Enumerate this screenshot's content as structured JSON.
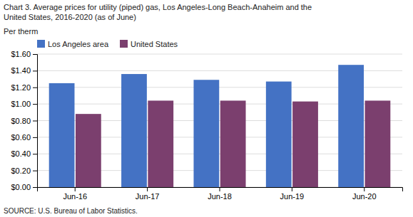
{
  "chart_data": {
    "type": "bar",
    "title": [
      "Chart 3. Average prices for utility (piped) gas, Los Angeles-Long Beach-Anaheim and the",
      "United States, 2016-2020  (as of June)"
    ],
    "ylabel": "Per therm",
    "source": "SOURCE: U.S. Bureau of Labor Statistics.",
    "categories": [
      "Jun-16",
      "Jun-17",
      "Jun-18",
      "Jun-19",
      "Jun-20"
    ],
    "series": [
      {
        "name": "Los Angeles area",
        "color": "#4472C4",
        "values": [
          1.25,
          1.36,
          1.29,
          1.27,
          1.47
        ]
      },
      {
        "name": "United States",
        "color": "#7B3F6E",
        "values": [
          0.88,
          1.04,
          1.04,
          1.03,
          1.04
        ]
      }
    ],
    "ylim": [
      0,
      1.6
    ],
    "yticks": [
      {
        "value": 0.0,
        "label": "$0.00"
      },
      {
        "value": 0.2,
        "label": "$0.20"
      },
      {
        "value": 0.4,
        "label": "$0.40"
      },
      {
        "value": 0.6,
        "label": "$0.60"
      },
      {
        "value": 0.8,
        "label": "$0.80"
      },
      {
        "value": 1.0,
        "label": "$1.00"
      },
      {
        "value": 1.2,
        "label": "$1.20"
      },
      {
        "value": 1.4,
        "label": "$1.40"
      },
      {
        "value": 1.6,
        "label": "$1.60"
      }
    ],
    "grid": true,
    "legend": "top-left"
  }
}
